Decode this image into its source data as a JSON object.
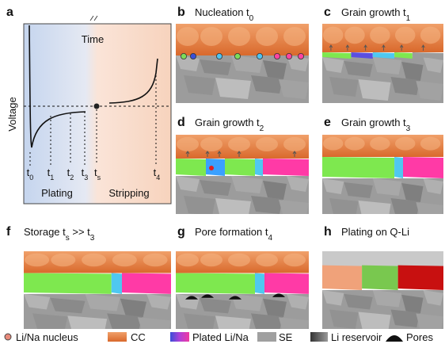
{
  "panel_a": {
    "label": "a",
    "x_axis": "Time",
    "y_axis": "Voltage",
    "ticks": [
      [
        "t",
        "0"
      ],
      [
        "t",
        "1"
      ],
      [
        "t",
        "2"
      ],
      [
        "t",
        "3"
      ],
      [
        "t",
        "s"
      ],
      [
        "t",
        "4"
      ]
    ],
    "phases": [
      "Plating",
      "Stripping"
    ]
  },
  "panels": [
    {
      "label": "b",
      "title": [
        "Nucleation t",
        "0"
      ]
    },
    {
      "label": "c",
      "title": [
        "Grain growth t",
        "1"
      ]
    },
    {
      "label": "d",
      "title": [
        "Grain growth t",
        "2"
      ]
    },
    {
      "label": "e",
      "title": [
        "Grain growth t",
        "3"
      ]
    },
    {
      "label": "f",
      "title": [
        "Storage t",
        "s",
        " >> t",
        "3"
      ]
    },
    {
      "label": "g",
      "title": [
        "Pore formation t",
        "4"
      ]
    },
    {
      "label": "h",
      "title": [
        "Plating on Q-Li"
      ]
    }
  ],
  "legend": [
    "Li/Na nucleus",
    "CC",
    "Plated Li/Na",
    "SE",
    "Li reservoir",
    "Pores"
  ]
}
